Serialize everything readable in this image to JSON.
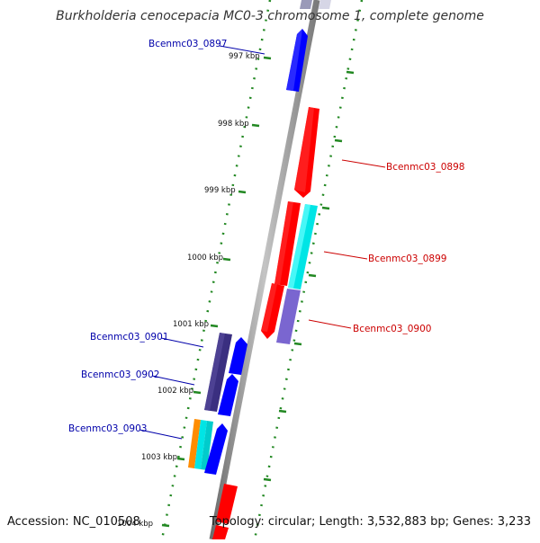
{
  "title": "Burkholderia cenocepacia MC0-3 chromosome 1, complete genome",
  "footer": {
    "accession": "Accession: NC_010508",
    "topology": "Topology: circular; Length: 3,532,883 bp; Genes: 3,233"
  },
  "colors": {
    "forward_gene": "#0000ff",
    "reverse_gene": "#ff0000",
    "forward_gene_label": "#0000aa",
    "reverse_gene_label": "#cc0000",
    "tick": "#228822",
    "axis": "#888888",
    "annotation_cyan": "#00e5e5",
    "annotation_purple": "#7a66d0",
    "annotation_indigo": "#3a2f80",
    "annotation_orange": "#ff8c00"
  },
  "scale_labels": [
    "997 kbp",
    "998 kbp",
    "999 kbp",
    "1000 kbp",
    "1001 kbp",
    "1002 kbp",
    "1003 kbp",
    "1004 kbp"
  ],
  "gene_labels": [
    {
      "name": "Bcenmc03_0897",
      "strand": "forward"
    },
    {
      "name": "Bcenmc03_0898",
      "strand": "reverse"
    },
    {
      "name": "Bcenmc03_0899",
      "strand": "reverse"
    },
    {
      "name": "Bcenmc03_0900",
      "strand": "reverse"
    },
    {
      "name": "Bcenmc03_0901",
      "strand": "forward"
    },
    {
      "name": "Bcenmc03_0902",
      "strand": "forward"
    },
    {
      "name": "Bcenmc03_0903",
      "strand": "forward"
    }
  ]
}
